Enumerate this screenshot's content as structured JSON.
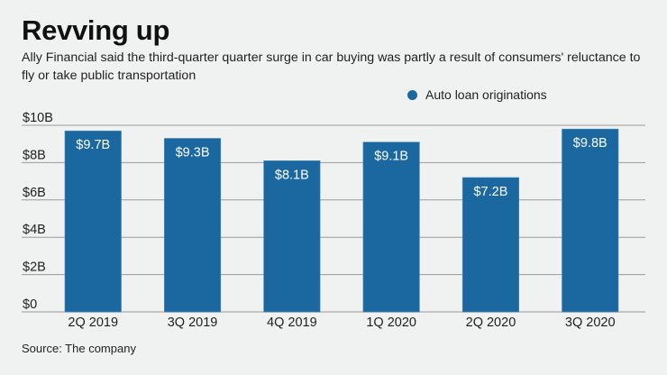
{
  "header": {
    "title": "Revving up",
    "subtitle": "Ally Financial said the third-quarter quarter surge in car buying was partly a result of consumers' reluctance to fly or take public transportation"
  },
  "footer": {
    "source": "Source: The company"
  },
  "colors": {
    "bar": "#1b679f",
    "grid": "#9a9a9a",
    "background": "#f0f1f1"
  },
  "chart_data": {
    "type": "bar",
    "title": "Revving up",
    "xlabel": "",
    "ylabel": "",
    "categories": [
      "2Q 2019",
      "3Q 2019",
      "4Q 2019",
      "1Q 2020",
      "2Q 2020",
      "3Q 2020"
    ],
    "series": [
      {
        "name": "Auto loan originations",
        "values": [
          9.7,
          9.3,
          8.1,
          9.1,
          7.2,
          9.8
        ],
        "unit": "billion USD"
      }
    ],
    "data_labels": [
      "$9.7B",
      "$9.3B",
      "$8.1B",
      "$9.1B",
      "$7.2B",
      "$9.8B"
    ],
    "ylim": [
      0,
      10
    ],
    "yticks": [
      0,
      2,
      4,
      6,
      8,
      10
    ],
    "ytick_labels": [
      "$0",
      "$2B",
      "$4B",
      "$6B",
      "$8B",
      "$10B"
    ],
    "grid": true,
    "legend": {
      "entries": [
        "Auto loan originations"
      ],
      "placement": "top-right"
    }
  }
}
